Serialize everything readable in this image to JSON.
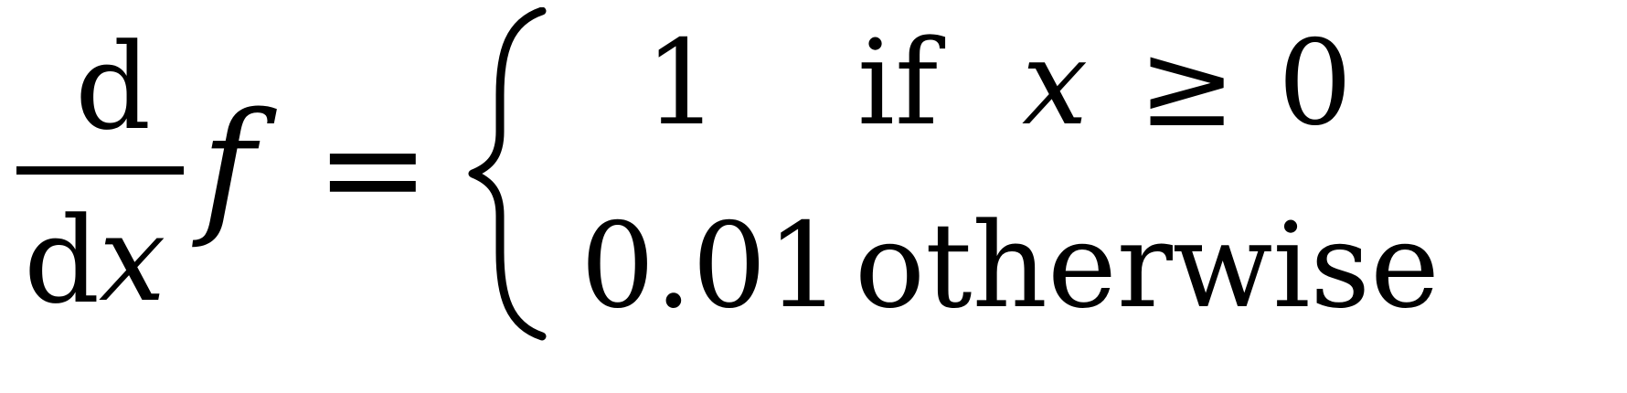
{
  "equation": {
    "derivative": {
      "numerator": "d",
      "denominator_d": "d",
      "denominator_var": "x"
    },
    "function": "f",
    "equals": "=",
    "cases": [
      {
        "value": "1",
        "condition_word": "if",
        "condition_var": "x",
        "relation": "≥",
        "bound": "0"
      },
      {
        "value": "0.01",
        "condition_word": "otherwise"
      }
    ]
  }
}
